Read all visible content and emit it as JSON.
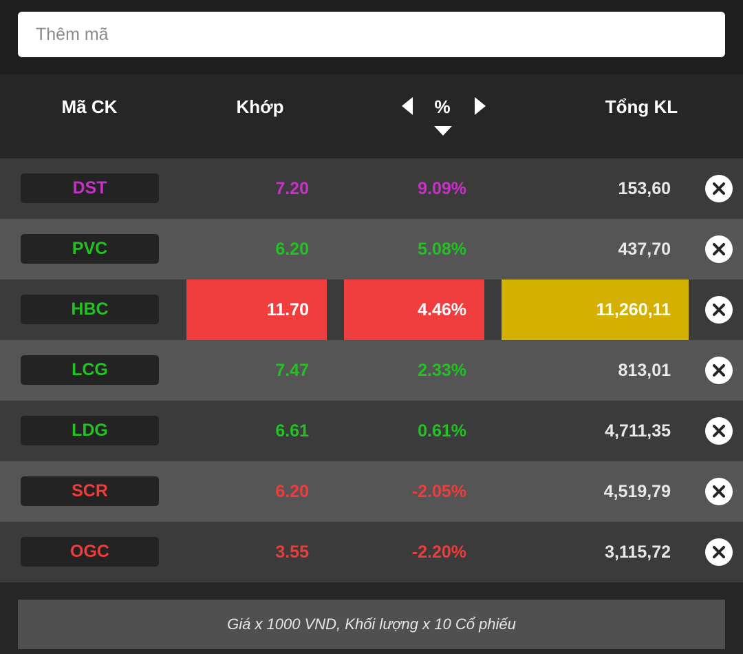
{
  "search": {
    "placeholder": "Thêm mã"
  },
  "header": {
    "code_label": "Mã CK",
    "price_label": "Khớp",
    "change_label": "%",
    "total_label": "Tổng KL",
    "sort_direction": "descending"
  },
  "colors": {
    "ceiling": "#c830c8",
    "up": "#22c222",
    "down": "#ee3c3c",
    "flash_red": "#f03e3e",
    "flash_yellow": "#d4b000"
  },
  "rows": [
    {
      "code": "DST",
      "price": "7.20",
      "change": "9.09%",
      "total": "153,60",
      "color": "#c830c8",
      "flash_price": false,
      "flash_change": false,
      "flash_total": false
    },
    {
      "code": "PVC",
      "price": "6.20",
      "change": "5.08%",
      "total": "437,70",
      "color": "#22c222",
      "flash_price": false,
      "flash_change": false,
      "flash_total": false
    },
    {
      "code": "HBC",
      "price": "11.70",
      "change": "4.46%",
      "total": "11,260,11",
      "color": "#22c222",
      "flash_price": true,
      "flash_change": true,
      "flash_total": true
    },
    {
      "code": "LCG",
      "price": "7.47",
      "change": "2.33%",
      "total": "813,01",
      "color": "#22c222",
      "flash_price": false,
      "flash_change": false,
      "flash_total": false
    },
    {
      "code": "LDG",
      "price": "6.61",
      "change": "0.61%",
      "total": "4,711,35",
      "color": "#22c222",
      "flash_price": false,
      "flash_change": false,
      "flash_total": false
    },
    {
      "code": "SCR",
      "price": "6.20",
      "change": "-2.05%",
      "total": "4,519,79",
      "color": "#ee3c3c",
      "flash_price": false,
      "flash_change": false,
      "flash_total": false
    },
    {
      "code": "OGC",
      "price": "3.55",
      "change": "-2.20%",
      "total": "3,115,72",
      "color": "#ee3c3c",
      "flash_price": false,
      "flash_change": false,
      "flash_total": false
    }
  ],
  "footer": {
    "note": "Giá x 1000 VND, Khối lượng x 10 Cổ phiếu"
  },
  "icons": {
    "previous_column": "chevron-left-icon",
    "next_column": "chevron-right-icon",
    "sort": "sort-down-icon",
    "remove": "close-icon"
  }
}
